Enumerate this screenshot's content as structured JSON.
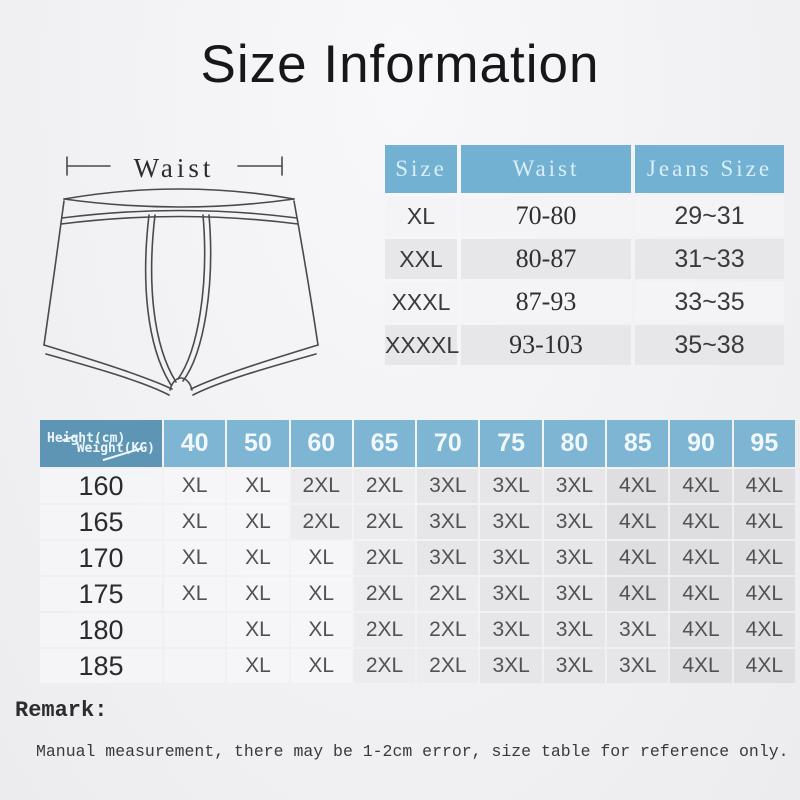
{
  "title": "Size Information",
  "diagram": {
    "waist_label": "Waist"
  },
  "size_table": {
    "headers": [
      "Size",
      "Waist",
      "Jeans Size"
    ],
    "header_bg": "#73b1d3",
    "header_text_color": "#d9eef8",
    "rows": [
      [
        "XL",
        "70-80",
        "29~31"
      ],
      [
        "XXL",
        "80-87",
        "31~33"
      ],
      [
        "XXXL",
        "87-93",
        "33~35"
      ],
      [
        "XXXXL",
        "93-103",
        "35~38"
      ]
    ]
  },
  "matrix_table": {
    "corner": {
      "top_label": "Weight(KG)",
      "bottom_label": "Height(cm)"
    },
    "corner_bg": "#5e95b4",
    "header_bg": "#7db5d3",
    "header_text_color": "#f0f8fc",
    "weights": [
      "40",
      "50",
      "60",
      "65",
      "70",
      "75",
      "80",
      "85",
      "90",
      "95"
    ],
    "rows": [
      {
        "height": "160",
        "sizes": [
          "XL",
          "XL",
          "2XL",
          "2XL",
          "3XL",
          "3XL",
          "3XL",
          "4XL",
          "4XL",
          "4XL"
        ]
      },
      {
        "height": "165",
        "sizes": [
          "XL",
          "XL",
          "2XL",
          "2XL",
          "3XL",
          "3XL",
          "3XL",
          "4XL",
          "4XL",
          "4XL"
        ]
      },
      {
        "height": "170",
        "sizes": [
          "XL",
          "XL",
          "XL",
          "2XL",
          "3XL",
          "3XL",
          "3XL",
          "4XL",
          "4XL",
          "4XL"
        ]
      },
      {
        "height": "175",
        "sizes": [
          "XL",
          "XL",
          "XL",
          "2XL",
          "2XL",
          "3XL",
          "3XL",
          "4XL",
          "4XL",
          "4XL"
        ]
      },
      {
        "height": "180",
        "sizes": [
          "",
          "XL",
          "XL",
          "2XL",
          "2XL",
          "3XL",
          "3XL",
          "3XL",
          "4XL",
          "4XL"
        ]
      },
      {
        "height": "185",
        "sizes": [
          "",
          "XL",
          "XL",
          "2XL",
          "2XL",
          "3XL",
          "3XL",
          "3XL",
          "4XL",
          "4XL"
        ]
      }
    ]
  },
  "remark": {
    "label": "Remark:",
    "text": "Manual measurement, there may be 1-2cm error, size table for reference only."
  }
}
